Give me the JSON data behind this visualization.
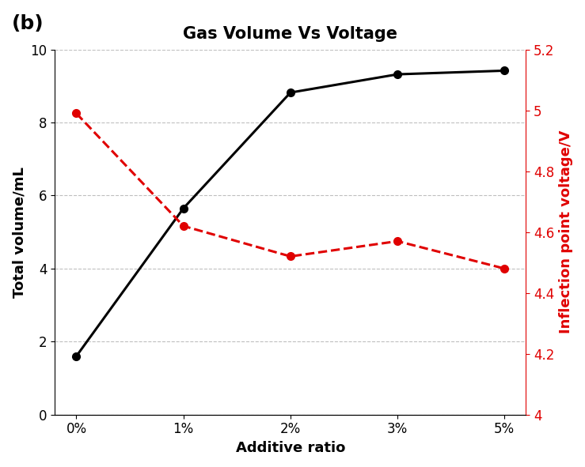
{
  "title": "Gas Volume Vs Voltage",
  "panel_label": "(b)",
  "x_labels": [
    "0%",
    "1%",
    "2%",
    "3%",
    "5%"
  ],
  "x_values": [
    0,
    1,
    2,
    3,
    4
  ],
  "black_line": {
    "y": [
      1.6,
      5.65,
      8.82,
      9.32,
      9.42
    ],
    "color": "#000000",
    "linewidth": 2.2,
    "marker": "o",
    "markersize": 7
  },
  "red_line": {
    "y": [
      4.99,
      4.62,
      4.52,
      4.57,
      4.48
    ],
    "color": "#e00000",
    "linewidth": 2.2,
    "linestyle": "--",
    "marker": "o",
    "markersize": 7
  },
  "xlabel": "Additive ratio",
  "ylabel_left": "Total volume/mL",
  "ylabel_right": "Inflection point voltage/V",
  "ylim_left": [
    0,
    10
  ],
  "ylim_right": [
    4.0,
    5.2
  ],
  "yticks_left": [
    0,
    2,
    4,
    6,
    8,
    10
  ],
  "yticks_right": [
    4.0,
    4.2,
    4.4,
    4.6,
    4.8,
    5.0,
    5.2
  ],
  "ytick_labels_right": [
    "4",
    "4.2",
    "4.4",
    "4.6",
    "4.8",
    "5",
    "5.2"
  ],
  "grid_color": "#b0b0b0",
  "grid_linestyle": "--",
  "grid_alpha": 0.8,
  "background_color": "#ffffff",
  "fig_width": 7.39,
  "fig_height": 5.91,
  "title_fontsize": 15,
  "label_fontsize": 13,
  "tick_fontsize": 12,
  "panel_fontsize": 18
}
